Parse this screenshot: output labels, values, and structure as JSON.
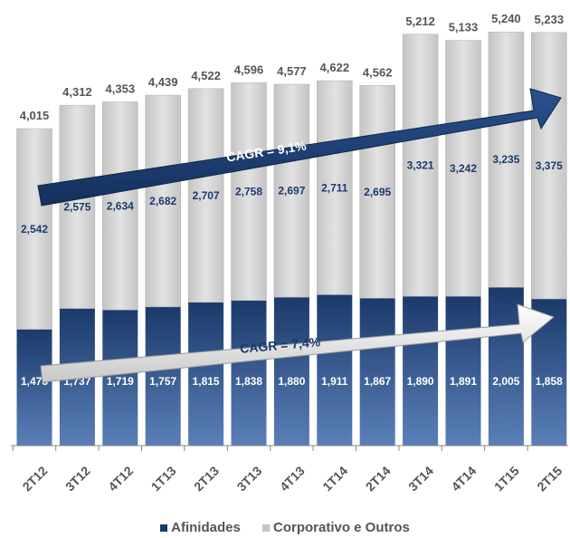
{
  "chart_data": {
    "type": "bar",
    "stacked": true,
    "categories": [
      "2T12",
      "3T12",
      "4T12",
      "1T13",
      "2T13",
      "3T13",
      "4T13",
      "1T14",
      "2T14",
      "3T14",
      "4T14",
      "1T15",
      "2T15"
    ],
    "series": [
      {
        "name": "Afinidades",
        "values": [
          1473,
          1737,
          1719,
          1757,
          1815,
          1838,
          1880,
          1911,
          1867,
          1890,
          1891,
          2005,
          1858
        ],
        "color": "#1b3a6b"
      },
      {
        "name": "Corporativo e Outros",
        "values": [
          2542,
          2575,
          2634,
          2682,
          2707,
          2758,
          2697,
          2711,
          2695,
          3321,
          3242,
          3235,
          3375
        ],
        "color": "#d0d0d0"
      }
    ],
    "totals": [
      4015,
      4312,
      4353,
      4439,
      4522,
      4596,
      4577,
      4622,
      4562,
      5212,
      5133,
      5240,
      5233
    ],
    "total_labels": [
      "4,015",
      "4,312",
      "4,353",
      "4,439",
      "4,522",
      "4,596",
      "4,577",
      "4,622",
      "4,562",
      "5,212",
      "5,133",
      "5,240",
      "5,233"
    ],
    "afinidades_labels": [
      "1,473",
      "1,737",
      "1,719",
      "1,757",
      "1,815",
      "1,838",
      "1,880",
      "1,911",
      "1,867",
      "1,890",
      "1,891",
      "2,005",
      "1,858"
    ],
    "corporativo_labels": [
      "2,542",
      "2,575",
      "2,634",
      "2,682",
      "2,707",
      "2,758",
      "2,697",
      "2,711",
      "2,695",
      "3,321",
      "3,242",
      "3,235",
      "3,375"
    ],
    "annotations": [
      {
        "text": "CAGR  = 9,1%",
        "series": "Corporativo e Outros"
      },
      {
        "text": "CAGR  = 7,4%",
        "series": "Afinidades"
      }
    ],
    "ylim": [
      0,
      5300
    ],
    "grid": false,
    "legend_position": "bottom"
  },
  "colors": {
    "afinidades": "#1b3a6b",
    "corporativo": "#d0d0d0",
    "arrow_top": "#1b3a6b",
    "arrow_bottom": "#e8e8e8"
  }
}
